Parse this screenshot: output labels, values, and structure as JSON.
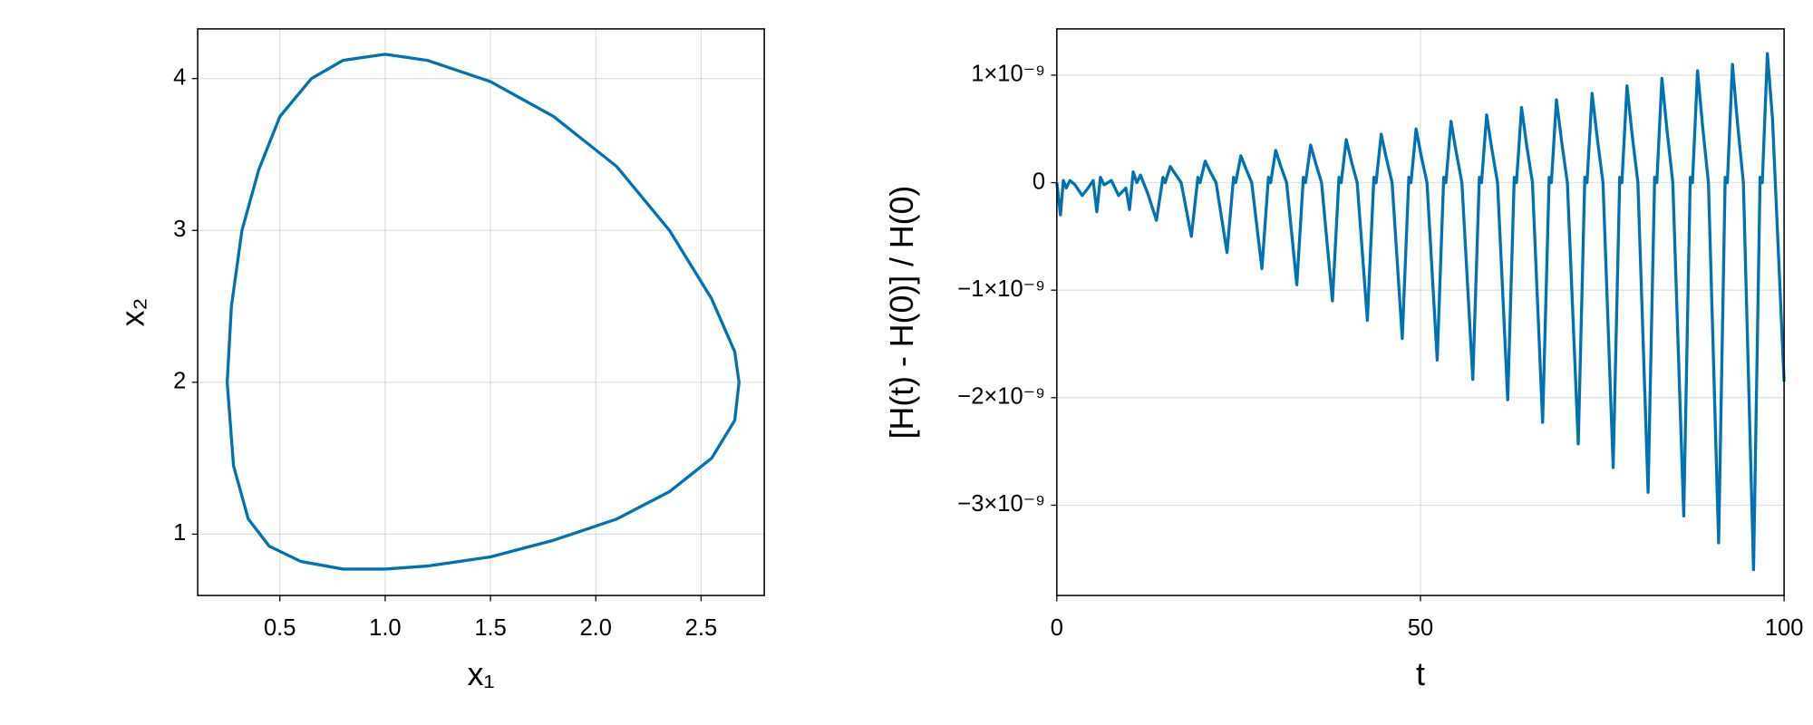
{
  "chart_data": [
    {
      "type": "line",
      "xlabel": "x₁",
      "ylabel": "x₂",
      "color": "#0072b2",
      "grid": true,
      "xlim": [
        0.11,
        2.8
      ],
      "ylim": [
        0.596,
        4.327
      ],
      "xticks": [
        0.5,
        {
          "value": 1.0,
          "label": "1.0"
        },
        1.5,
        {
          "value": 2.0,
          "label": "2.0"
        },
        2.5
      ],
      "yticks": [
        1,
        2,
        3,
        4
      ],
      "x": [
        0.25,
        0.27,
        0.32,
        0.4,
        0.5,
        0.65,
        0.8,
        1.0,
        1.2,
        1.5,
        1.8,
        2.1,
        2.35,
        2.55,
        2.66,
        2.68,
        2.66,
        2.55,
        2.35,
        2.1,
        1.8,
        1.5,
        1.2,
        1.0,
        0.8,
        0.6,
        0.45,
        0.35,
        0.28,
        0.25
      ],
      "values": [
        2.0,
        2.5,
        3.0,
        3.4,
        3.75,
        4.0,
        4.12,
        4.16,
        4.12,
        3.98,
        3.75,
        3.42,
        3.0,
        2.55,
        2.2,
        2.0,
        1.75,
        1.5,
        1.28,
        1.1,
        0.96,
        0.85,
        0.79,
        0.77,
        0.77,
        0.82,
        0.92,
        1.1,
        1.45,
        2.0
      ]
    },
    {
      "type": "line",
      "xlabel": "t",
      "ylabel": "[H(t) - H(0)] / H(0)",
      "color": "#0072b2",
      "grid": true,
      "xlim": [
        0,
        100
      ],
      "ylim": [
        -3.84e-09,
        1.43e-09
      ],
      "xticks": [
        0,
        50,
        100
      ],
      "yticks": [
        {
          "value": 1e-09,
          "label": "1×10⁻⁹"
        },
        0,
        {
          "value": -1e-09,
          "label": "−1×10⁻⁹"
        },
        {
          "value": -2e-09,
          "label": "−2×10⁻⁹"
        },
        {
          "value": -3e-09,
          "label": "−3×10⁻⁹"
        }
      ],
      "x": [
        0,
        0.5,
        0.9,
        1.3,
        1.8,
        2.5,
        3.5,
        4.3,
        5,
        5.5,
        6,
        6.5,
        7.5,
        8.5,
        9.5,
        10,
        10.5,
        11,
        11.5,
        12.5,
        13.7,
        14.6,
        14.9,
        15.6,
        16.3,
        17.1,
        18.5,
        19.4,
        19.7,
        20.4,
        21.1,
        21.9,
        23.4,
        24.3,
        24.6,
        25.3,
        26.0,
        26.8,
        28.2,
        29.1,
        29.4,
        30.1,
        30.8,
        31.6,
        33.0,
        33.9,
        34.2,
        34.9,
        35.6,
        36.4,
        37.9,
        38.8,
        39.1,
        39.8,
        40.5,
        41.3,
        42.7,
        43.6,
        43.9,
        44.6,
        45.3,
        46.1,
        47.5,
        48.4,
        48.7,
        49.4,
        50.1,
        50.9,
        52.3,
        53.2,
        53.5,
        54.2,
        54.9,
        55.7,
        57.2,
        58.1,
        58.4,
        59.1,
        59.8,
        60.6,
        62.0,
        62.9,
        63.2,
        63.9,
        64.6,
        65.4,
        66.8,
        67.7,
        68.0,
        68.7,
        69.4,
        70.2,
        71.7,
        72.6,
        72.9,
        73.6,
        74.3,
        75.1,
        76.5,
        77.4,
        77.7,
        78.4,
        79.1,
        79.9,
        81.3,
        82.2,
        82.5,
        83.2,
        83.9,
        84.7,
        86.2,
        87.1,
        87.4,
        88.1,
        88.8,
        89.6,
        91.0,
        91.9,
        92.2,
        92.9,
        93.6,
        94.4,
        95.8,
        96.7,
        97.0,
        97.7,
        98.4,
        100
      ],
      "values": [
        0,
        -3e-10,
        2e-11,
        -5e-11,
        2e-11,
        -2e-11,
        -1.2e-10,
        -5e-11,
        2e-11,
        -2.7e-10,
        5e-11,
        -2e-11,
        2e-11,
        -1.2e-10,
        -5e-11,
        -2.5e-10,
        1e-10,
        0,
        7e-11,
        -1e-10,
        -3.5e-10,
        5e-11,
        0,
        1.5e-10,
        8e-11,
        0,
        -5e-10,
        5e-11,
        0,
        2e-10,
        1e-10,
        0,
        -6.5e-10,
        5e-11,
        0,
        2.5e-10,
        1.3e-10,
        0,
        -8e-10,
        5e-11,
        0,
        3e-10,
        1.5e-10,
        0,
        -9.5e-10,
        5e-11,
        0,
        3.5e-10,
        1.8e-10,
        0,
        -1.1e-09,
        5e-11,
        0,
        4e-10,
        2e-10,
        0,
        -1.28e-09,
        5e-11,
        0,
        4.5e-10,
        2.3e-10,
        0,
        -1.45e-09,
        5e-11,
        0,
        5e-10,
        2.5e-10,
        0,
        -1.65e-09,
        5e-11,
        0,
        5.7e-10,
        2.9e-10,
        0,
        -1.83e-09,
        5e-11,
        0,
        6.3e-10,
        3.2e-10,
        0,
        -2.02e-09,
        5e-11,
        0,
        7e-10,
        3.5e-10,
        0,
        -2.23e-09,
        5e-11,
        0,
        7.7e-10,
        3.9e-10,
        0,
        -2.43e-09,
        5e-11,
        0,
        8.3e-10,
        4.2e-10,
        0,
        -2.65e-09,
        5e-11,
        0,
        9e-10,
        4.5e-10,
        0,
        -2.88e-09,
        5e-11,
        0,
        9.7e-10,
        4.9e-10,
        0,
        -3.1e-09,
        5e-11,
        0,
        1.04e-09,
        5.2e-10,
        0,
        -3.35e-09,
        5e-11,
        0,
        1.1e-09,
        5.5e-10,
        0,
        -3.6e-09,
        5e-11,
        0,
        1.2e-09,
        6e-10,
        -1.85e-09
      ]
    }
  ]
}
